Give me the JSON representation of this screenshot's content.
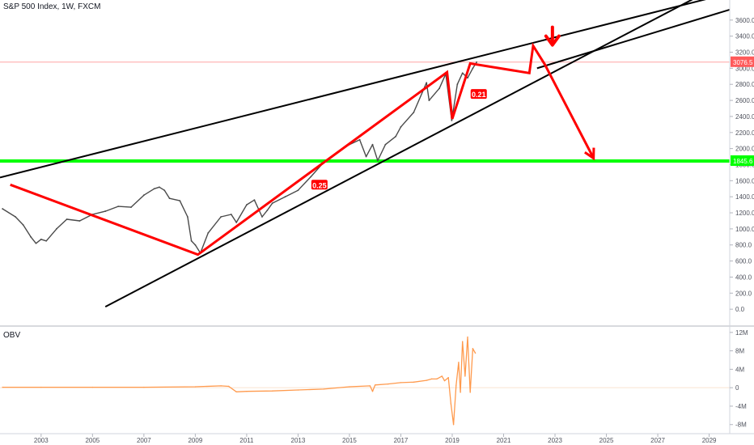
{
  "chart_data": {
    "type": "line",
    "title": "S&P 500 Index, 1W, FXCM",
    "x_axis": {
      "range": [
        2001.4,
        2029.8
      ],
      "ticks": [
        2003,
        2005,
        2007,
        2009,
        2011,
        2013,
        2015,
        2017,
        2019,
        2021,
        2023,
        2025,
        2027,
        2029
      ],
      "tick_labels": [
        "2003",
        "2005",
        "2007",
        "2009",
        "2011",
        "2013",
        "2015",
        "2017",
        "2019",
        "2021",
        "2023",
        "2025",
        "2027",
        "2029"
      ]
    },
    "price_axis": {
      "range": [
        -200,
        3850
      ],
      "ticks": [
        0,
        200,
        400,
        600,
        800,
        1000,
        1200,
        1400,
        1600,
        1800,
        2000,
        2200,
        2400,
        2600,
        2800,
        3000,
        3200,
        3400,
        3600
      ],
      "tick_labels": [
        "0.0",
        "200.0",
        "400.0",
        "600.0",
        "800.0",
        "1000.0",
        "1200.0",
        "1400.0",
        "1600.0",
        "1800.0",
        "2000.0",
        "2200.0",
        "2400.0",
        "2600.0",
        "2800.0",
        "3000.0",
        "3200.0",
        "3400.0",
        "3600.0"
      ]
    },
    "obv_axis": {
      "range": [
        -9.8,
        13.2
      ],
      "ticks": [
        12,
        8,
        4,
        0,
        -4,
        -8
      ],
      "tick_labels": [
        "12M",
        "8M",
        "4M",
        "0",
        "-4M",
        "-8M"
      ]
    },
    "series": [
      {
        "name": "S&P 500",
        "color": "#4a4a4a",
        "x": [
          2001.5,
          2002.0,
          2002.3,
          2002.6,
          2002.8,
          2003.0,
          2003.2,
          2003.6,
          2004.0,
          2004.5,
          2005.0,
          2005.5,
          2006.0,
          2006.5,
          2007.0,
          2007.4,
          2007.6,
          2007.8,
          2008.0,
          2008.4,
          2008.7,
          2008.85,
          2009.0,
          2009.2,
          2009.5,
          2010.0,
          2010.4,
          2010.6,
          2011.0,
          2011.3,
          2011.6,
          2011.8,
          2012.0,
          2012.5,
          2013.0,
          2013.5,
          2014.0,
          2014.5,
          2015.0,
          2015.4,
          2015.65,
          2015.9,
          2016.1,
          2016.4,
          2016.8,
          2017.0,
          2017.5,
          2018.0,
          2018.1,
          2018.5,
          2018.75,
          2018.98,
          2019.2,
          2019.4,
          2019.6,
          2019.8,
          2019.95
        ],
        "values": [
          1250,
          1150,
          1050,
          900,
          820,
          870,
          850,
          1000,
          1120,
          1100,
          1180,
          1220,
          1280,
          1270,
          1420,
          1500,
          1520,
          1480,
          1380,
          1350,
          1150,
          850,
          800,
          700,
          950,
          1150,
          1180,
          1080,
          1300,
          1360,
          1150,
          1230,
          1320,
          1400,
          1480,
          1650,
          1830,
          1950,
          2050,
          2110,
          1900,
          2050,
          1850,
          2050,
          2150,
          2270,
          2450,
          2820,
          2600,
          2750,
          2930,
          2350,
          2800,
          2940,
          2880,
          3000,
          3076.5
        ]
      },
      {
        "name": "OBV",
        "color": "#ff9a4d",
        "x": [
          2001.5,
          2003.0,
          2005.0,
          2007.0,
          2009.0,
          2010.0,
          2010.3,
          2010.6,
          2011.0,
          2012.0,
          2013.0,
          2014.0,
          2015.0,
          2015.8,
          2015.9,
          2016.0,
          2016.5,
          2017.0,
          2017.5,
          2018.0,
          2018.2,
          2018.4,
          2018.6,
          2018.7,
          2018.85,
          2018.95,
          2019.05,
          2019.15,
          2019.25,
          2019.32,
          2019.4,
          2019.5,
          2019.6,
          2019.7,
          2019.8,
          2019.9
        ],
        "values": [
          0.1,
          0.1,
          0.1,
          0.1,
          0.2,
          0.4,
          0.3,
          -0.9,
          -0.8,
          -0.7,
          -0.5,
          -0.3,
          0.2,
          0.4,
          -0.8,
          0.6,
          0.8,
          1.1,
          1.2,
          1.6,
          1.9,
          1.9,
          2.5,
          1.5,
          2.2,
          -3.5,
          -8.0,
          0.5,
          5.5,
          -1.0,
          10.0,
          2.5,
          11.0,
          -1.0,
          8.5,
          7.5
        ]
      }
    ],
    "horizontal_levels": [
      {
        "name": "support",
        "value": 1845,
        "color": "#00ff00",
        "label": "1845.6"
      },
      {
        "name": "last-price",
        "value": 3076.5,
        "color": "#ff5a5a",
        "label": "3076.5"
      }
    ],
    "trendlines": [
      {
        "name": "upper-resistance",
        "color": "#000000",
        "x": [
          2001.4,
          2029.0
        ],
        "values": [
          1640,
          3870
        ]
      },
      {
        "name": "lower-support",
        "color": "#000000",
        "x": [
          2005.5,
          2029.2
        ],
        "values": [
          30,
          4000
        ]
      },
      {
        "name": "steep-channel",
        "color": "#000000",
        "x": [
          2022.3,
          2029.8
        ],
        "values": [
          3000,
          3730
        ]
      }
    ],
    "drawing_paths": [
      {
        "name": "forecast-path",
        "color": "#ff0000",
        "x": [
          2001.8,
          2009.1,
          2018.8,
          2019.0,
          2019.7,
          2022.0,
          2022.15,
          2022.6,
          2024.5
        ],
        "values": [
          1550,
          680,
          2950,
          2370,
          3060,
          2940,
          3280,
          3050,
          1880
        ]
      },
      {
        "name": "down-arrow-marker",
        "color": "#ff0000",
        "x": [
          2022.9
        ],
        "values": [
          3350
        ]
      }
    ],
    "annotations": [
      {
        "text": "0.25",
        "x": 2013.8,
        "values": 1550,
        "color": "#ff0000"
      },
      {
        "text": "0.21",
        "x": 2020.0,
        "values": 2680,
        "color": "#ff0000"
      }
    ],
    "obv_label": "OBV",
    "grid": false,
    "legend": "none"
  }
}
